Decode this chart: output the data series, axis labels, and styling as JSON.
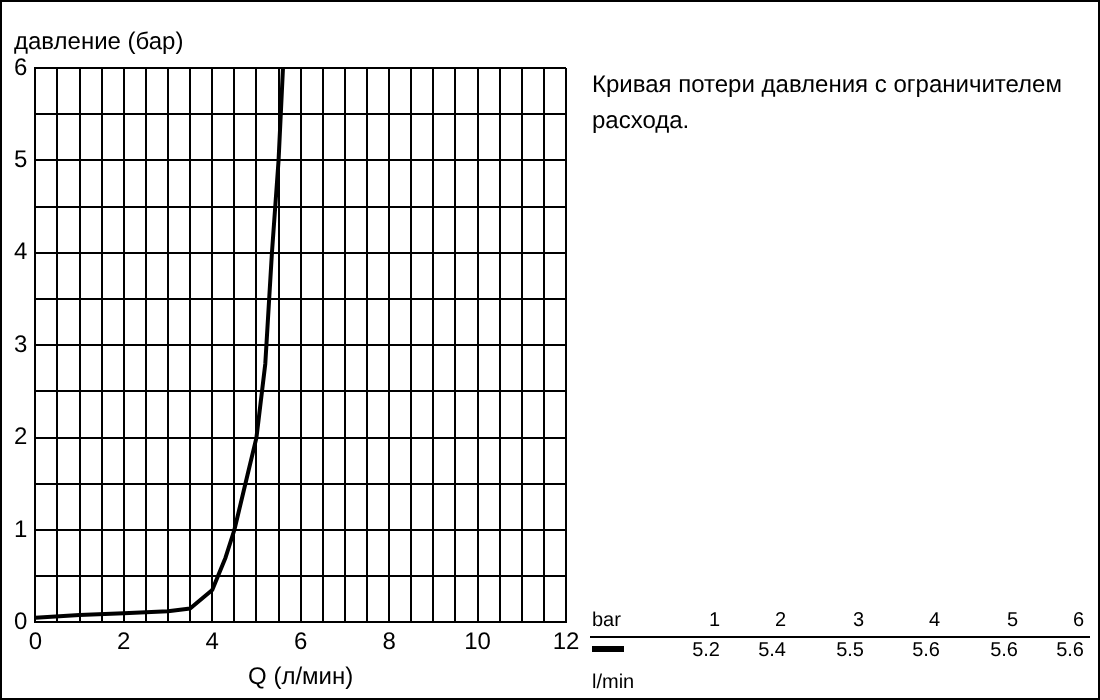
{
  "chart_data": {
    "type": "line",
    "title": "Кривая потери давления с ограничителем расхода.",
    "xlabel": "Q (л/мин)",
    "ylabel": "давление (бар)",
    "series": [
      {
        "color": "#000000",
        "x": [
          0,
          1,
          2,
          3,
          3.5,
          4,
          4.3,
          4.5,
          4.8,
          5,
          5.2,
          5.35,
          5.5,
          5.6
        ],
        "values": [
          0.05,
          0.08,
          0.1,
          0.12,
          0.15,
          0.35,
          0.7,
          1,
          1.6,
          2,
          2.8,
          4,
          5,
          6
        ]
      }
    ],
    "xlim": [
      0,
      12
    ],
    "xticks": [
      0,
      {
        "value": 0.5,
        "label": null
      },
      {
        "value": 1,
        "label": null
      },
      {
        "value": 1.5,
        "label": null
      },
      2,
      {
        "value": 2.5,
        "label": null
      },
      {
        "value": 3,
        "label": null
      },
      {
        "value": 3.5,
        "label": null
      },
      4,
      {
        "value": 4.5,
        "label": null
      },
      {
        "value": 5,
        "label": null
      },
      {
        "value": 5.5,
        "label": null
      },
      6,
      {
        "value": 6.5,
        "label": null
      },
      {
        "value": 7,
        "label": null
      },
      {
        "value": 7.5,
        "label": null
      },
      8,
      {
        "value": 8.5,
        "label": null
      },
      {
        "value": 9,
        "label": null
      },
      {
        "value": 9.5,
        "label": null
      },
      10,
      {
        "value": 10.5,
        "label": null
      },
      {
        "value": 11,
        "label": null
      },
      {
        "value": 11.5,
        "label": null
      },
      12
    ],
    "ylim": [
      0,
      6
    ],
    "yticks": [
      0,
      {
        "value": 0.5,
        "label": null
      },
      1,
      {
        "value": 1.5,
        "label": null
      },
      2,
      {
        "value": 2.5,
        "label": null
      },
      3,
      {
        "value": 3.5,
        "label": null
      },
      4,
      {
        "value": 4.5,
        "label": null
      },
      5,
      {
        "value": 5.5,
        "label": null
      },
      6
    ],
    "grid": true,
    "marker": "none",
    "line_style": "solid",
    "annotations": [
      "bar",
      "1",
      "2",
      "3",
      "4",
      "5",
      "6",
      "5.2",
      "5.4",
      "5.5",
      "5.6",
      "5.6",
      "5.6",
      "l/min"
    ]
  }
}
